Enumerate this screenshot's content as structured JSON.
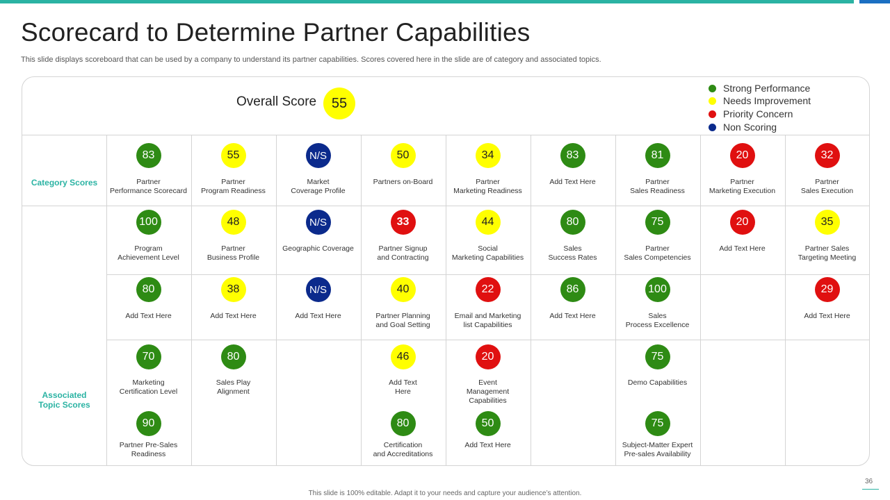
{
  "slide": {
    "title": "Scorecard to Determine Partner Capabilities",
    "subtitle": "This slide displays scoreboard that can be used by a company to understand its partner capabilities. Scores covered here in the slide are of category and associated topics.",
    "footer": "This slide is 100% editable. Adapt it to your needs and capture your audience’s attention.",
    "page_number": "36"
  },
  "overall": {
    "label": "Overall Score",
    "score": "55",
    "status": "yellow"
  },
  "legend": [
    {
      "label": "Strong Performance",
      "color": "#2e8b14"
    },
    {
      "label": "Needs Improvement",
      "color": "#ffff00"
    },
    {
      "label": "Priority Concern",
      "color": "#e01010"
    },
    {
      "label": "Non Scoring",
      "color": "#0b2a8c"
    }
  ],
  "row_labels": {
    "category": "Category Scores",
    "associated": "Associated\nTopic Scores"
  },
  "category_scores": [
    {
      "score": "83",
      "status": "green",
      "label": "Partner\nPerformance Scorecard"
    },
    {
      "score": "55",
      "status": "yellow",
      "label": "Partner\nProgram Readiness"
    },
    {
      "score": "N/S",
      "status": "navy",
      "label": "Market\nCoverage Profile"
    },
    {
      "score": "50",
      "status": "yellow",
      "label": "Partners on-Board"
    },
    {
      "score": "34",
      "status": "yellow",
      "label": "Partner\nMarketing Readiness"
    },
    {
      "score": "83",
      "status": "green",
      "label": "Add Text Here"
    },
    {
      "score": "81",
      "status": "green",
      "label": "Partner\nSales Readiness"
    },
    {
      "score": "20",
      "status": "red",
      "label": "Partner\nMarketing Execution"
    },
    {
      "score": "32",
      "status": "red",
      "label": "Partner\nSales Execution"
    }
  ],
  "topic_rows": [
    [
      {
        "score": "100",
        "status": "green",
        "label": "Program\nAchievement Level"
      },
      {
        "score": "48",
        "status": "yellow",
        "label": "Partner\nBusiness Profile"
      },
      {
        "score": "N/S",
        "status": "navy",
        "label": "Geographic Coverage"
      },
      {
        "score": "33",
        "status": "red",
        "bold": true,
        "label": "Partner Signup\nand Contracting"
      },
      {
        "score": "44",
        "status": "yellow",
        "label": "Social\nMarketing Capabilities"
      },
      {
        "score": "80",
        "status": "green",
        "label": "Sales\nSuccess Rates"
      },
      {
        "score": "75",
        "status": "green",
        "label": "Partner\nSales Competencies"
      },
      {
        "score": "20",
        "status": "red",
        "label": "Add Text Here"
      },
      {
        "score": "35",
        "status": "yellow",
        "label": "Partner Sales\nTargeting Meeting"
      }
    ],
    [
      {
        "score": "80",
        "status": "green",
        "label": "Add Text Here"
      },
      {
        "score": "38",
        "status": "yellow",
        "label": "Add Text Here"
      },
      {
        "score": "N/S",
        "status": "navy",
        "label": "Add Text Here"
      },
      {
        "score": "40",
        "status": "yellow",
        "label": "Partner Planning\nand Goal Setting"
      },
      {
        "score": "22",
        "status": "red",
        "label": "Email  and Marketing\nlist Capabilities"
      },
      {
        "score": "86",
        "status": "green",
        "label": "Add Text Here"
      },
      {
        "score": "100",
        "status": "green",
        "label": "Sales\nProcess Excellence"
      },
      null,
      {
        "score": "29",
        "status": "red",
        "label": "Add Text Here"
      }
    ],
    [
      {
        "score": "70",
        "status": "green",
        "label": "Marketing\nCertification Level"
      },
      {
        "score": "80",
        "status": "green",
        "label": "Sales Play\nAlignment"
      },
      null,
      {
        "score": "46",
        "status": "yellow",
        "label": "Add Text\nHere"
      },
      {
        "score": "20",
        "status": "red",
        "label": "Event\nManagement\nCapabilities"
      },
      null,
      {
        "score": "75",
        "status": "green",
        "label": "Demo Capabilities"
      },
      null,
      null
    ],
    [
      {
        "score": "90",
        "status": "green",
        "label": "Partner Pre-Sales\nReadiness"
      },
      null,
      null,
      {
        "score": "80",
        "status": "green",
        "label": "Certification\nand Accreditations"
      },
      {
        "score": "50",
        "status": "green",
        "label": "Add Text Here"
      },
      null,
      {
        "score": "75",
        "status": "green",
        "label": "Subject-Matter Expert\nPre-sales Availability"
      },
      null,
      null
    ]
  ]
}
